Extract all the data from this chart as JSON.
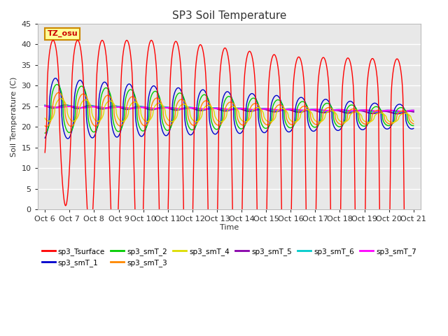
{
  "title": "SP3 Soil Temperature",
  "xlabel": "Time",
  "ylabel": "Soil Temperature (C)",
  "ylim": [
    0,
    45
  ],
  "xlim": [
    -0.3,
    15.3
  ],
  "annotation_text": "TZ_osu",
  "annotation_color": "#cc0000",
  "annotation_bg": "#ffff99",
  "annotation_border": "#cc8800",
  "series_colors": {
    "sp3_Tsurface": "#ff0000",
    "sp3_smT_1": "#0000cc",
    "sp3_smT_2": "#00cc00",
    "sp3_smT_3": "#ff8800",
    "sp3_smT_4": "#dddd00",
    "sp3_smT_5": "#8800aa",
    "sp3_smT_6": "#00cccc",
    "sp3_smT_7": "#ff00ff"
  },
  "xtick_labels": [
    "Oct 6",
    "Oct 7",
    "Oct 8",
    "Oct 9",
    "Oct 10",
    "Oct 11",
    "Oct 12",
    "Oct 13",
    "Oct 14",
    "Oct 15",
    "Oct 16",
    "Oct 17",
    "Oct 18",
    "Oct 19",
    "Oct 20",
    "Oct 21"
  ],
  "bg_color": "#e8e8e8",
  "grid_color": "#ffffff",
  "fig_bg": "#ffffff"
}
